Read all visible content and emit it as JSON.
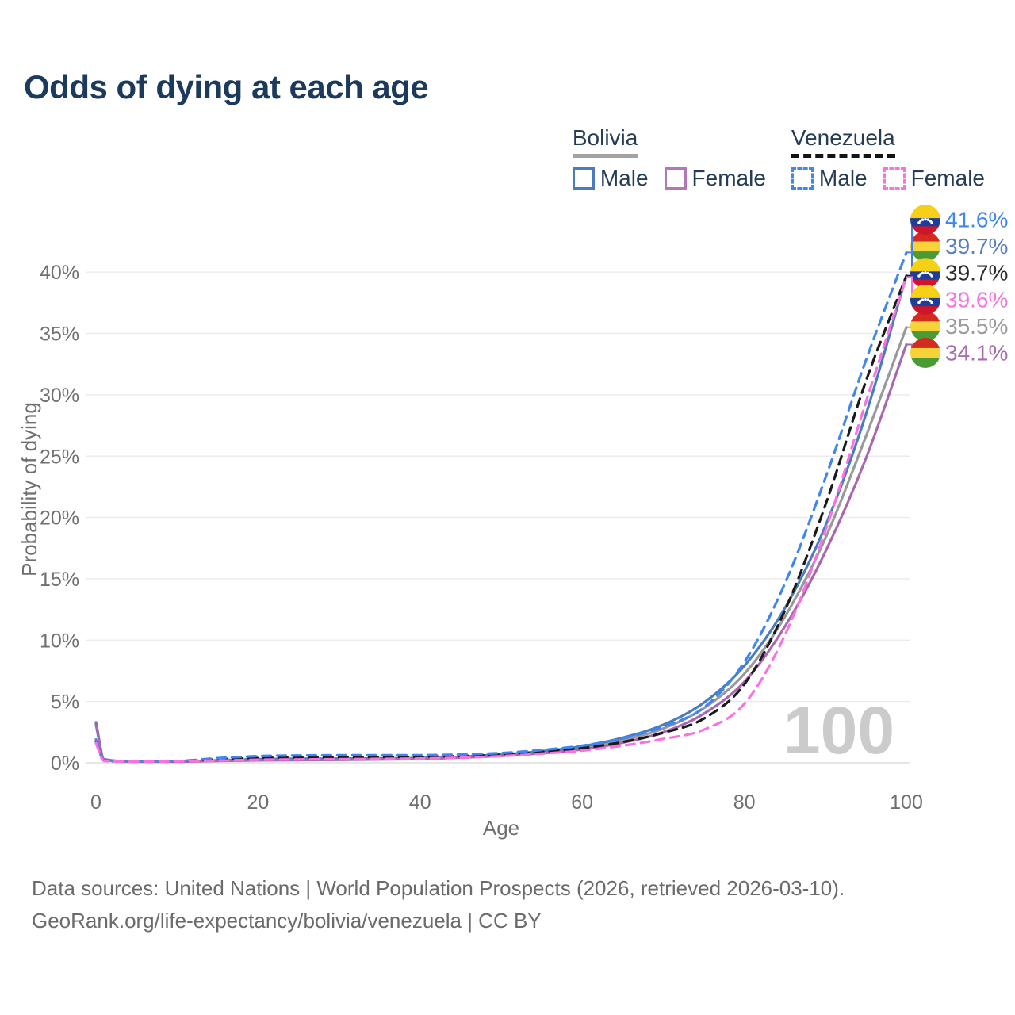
{
  "title": "Odds of dying at each age",
  "legend": {
    "groups": [
      {
        "name": "Bolivia",
        "line_style": "solid",
        "underline_color": "#a3a3a3",
        "items": [
          {
            "label": "Male",
            "color": "#4c7cc0"
          },
          {
            "label": "Female",
            "color": "#b277b6"
          }
        ]
      },
      {
        "name": "Venezuela",
        "line_style": "dashed",
        "underline_color": "#141414",
        "items": [
          {
            "label": "Male",
            "color": "#3f86f2"
          },
          {
            "label": "Female",
            "color": "#fb71e1"
          }
        ]
      }
    ]
  },
  "chart_data": {
    "type": "line",
    "title": "Odds of dying at each age",
    "xlabel": "Age",
    "ylabel": "Probability of dying",
    "xlim": [
      0,
      100
    ],
    "ylim": [
      0,
      43.5
    ],
    "grid": "horizontal-only",
    "legend_position": "top-right",
    "watermark": "100",
    "x_ticks": [
      {
        "v": 0,
        "label": "0"
      },
      {
        "v": 20,
        "label": "20"
      },
      {
        "v": 40,
        "label": "40"
      },
      {
        "v": 60,
        "label": "60"
      },
      {
        "v": 80,
        "label": "80"
      },
      {
        "v": 100,
        "label": "100"
      }
    ],
    "y_ticks": [
      {
        "v": 0,
        "label": "0%"
      },
      {
        "v": 5,
        "label": "5%"
      },
      {
        "v": 10,
        "label": "10%"
      },
      {
        "v": 15,
        "label": "15%"
      },
      {
        "v": 20,
        "label": "20%"
      },
      {
        "v": 25,
        "label": "25%"
      },
      {
        "v": 30,
        "label": "30%"
      },
      {
        "v": 35,
        "label": "35%"
      },
      {
        "v": 40,
        "label": "40%"
      }
    ],
    "ages": [
      0,
      1,
      5,
      10,
      15,
      20,
      25,
      30,
      35,
      40,
      45,
      50,
      55,
      60,
      65,
      70,
      75,
      80,
      85,
      90,
      95,
      100
    ],
    "series": [
      {
        "id": "bolivia-total",
        "name": "Bolivia",
        "color": "#999999",
        "dash": false,
        "end_value": 35.5,
        "end_label": "35.5%",
        "label_color": "#9b9b9b",
        "label_row": 4,
        "flag": "bolivia",
        "values": [
          3.2,
          0.28,
          0.11,
          0.11,
          0.18,
          0.25,
          0.28,
          0.29,
          0.32,
          0.36,
          0.46,
          0.62,
          0.86,
          1.22,
          1.85,
          2.8,
          4.45,
          7.25,
          11.9,
          18.3,
          26.6,
          35.5
        ]
      },
      {
        "id": "bolivia-male",
        "name": "Bolivia Male",
        "color": "#4c7cc0",
        "dash": false,
        "end_value": 39.7,
        "end_label": "39.7%",
        "label_color": "#587fc0",
        "label_row": 1,
        "flag": "bolivia",
        "values": [
          3.3,
          0.3,
          0.12,
          0.12,
          0.2,
          0.3,
          0.33,
          0.34,
          0.36,
          0.4,
          0.5,
          0.68,
          0.95,
          1.35,
          2.05,
          3.1,
          4.9,
          7.9,
          12.6,
          19.3,
          28.4,
          39.7
        ]
      },
      {
        "id": "bolivia-female",
        "name": "Bolivia Female",
        "color": "#a868b0",
        "dash": false,
        "end_value": 34.1,
        "end_label": "34.1%",
        "label_color": "#a76cae",
        "label_row": 5,
        "flag": "bolivia",
        "values": [
          3.1,
          0.25,
          0.1,
          0.1,
          0.15,
          0.2,
          0.22,
          0.24,
          0.27,
          0.32,
          0.42,
          0.57,
          0.78,
          1.1,
          1.65,
          2.5,
          4.0,
          6.6,
          11.1,
          17.2,
          24.8,
          34.1
        ]
      },
      {
        "id": "venezuela-total",
        "name": "Venezuela",
        "color": "#1a1a1a",
        "dash": true,
        "end_value": 39.7,
        "end_label": "39.7%",
        "label_color": "#2b2b2b",
        "label_row": 2,
        "flag": "venezuela",
        "values": [
          1.75,
          0.18,
          0.11,
          0.13,
          0.28,
          0.4,
          0.44,
          0.46,
          0.47,
          0.49,
          0.55,
          0.68,
          0.9,
          1.2,
          1.7,
          2.45,
          3.6,
          6.4,
          12.4,
          21.0,
          31.1,
          39.7
        ]
      },
      {
        "id": "venezuela-male",
        "name": "Venezuela Male",
        "color": "#3f86f2",
        "dash": true,
        "end_value": 41.6,
        "end_label": "41.6%",
        "label_color": "#3f86f2",
        "label_row": 0,
        "flag": "venezuela",
        "values": [
          1.9,
          0.2,
          0.12,
          0.15,
          0.38,
          0.55,
          0.6,
          0.62,
          0.62,
          0.63,
          0.68,
          0.8,
          1.05,
          1.4,
          2.0,
          2.95,
          4.5,
          8.2,
          14.6,
          23.2,
          32.8,
          41.6
        ]
      },
      {
        "id": "venezuela-female",
        "name": "Venezuela Female",
        "color": "#fb71e1",
        "dash": true,
        "end_value": 39.6,
        "end_label": "39.6%",
        "label_color": "#f673e2",
        "label_row": 3,
        "flag": "venezuela",
        "values": [
          1.6,
          0.15,
          0.09,
          0.11,
          0.18,
          0.25,
          0.28,
          0.3,
          0.32,
          0.35,
          0.42,
          0.55,
          0.75,
          1.0,
          1.4,
          1.95,
          2.7,
          4.8,
          10.4,
          18.9,
          29.4,
          39.6
        ]
      }
    ],
    "flags": {
      "bolivia": {
        "bands": [
          {
            "color": "#d52b1e",
            "frac": 0.34
          },
          {
            "color": "#f7d339",
            "frac": 0.33
          },
          {
            "color": "#4a9b35",
            "frac": 0.33
          }
        ],
        "stars": 0
      },
      "venezuela": {
        "bands": [
          {
            "color": "#f6cf17",
            "frac": 0.45
          },
          {
            "color": "#1f3d99",
            "frac": 0.27
          },
          {
            "color": "#cf142b",
            "frac": 0.28
          }
        ],
        "stars": 7,
        "star_color": "#ffffff"
      }
    }
  },
  "footer": {
    "line1": "Data sources: United Nations | World Population Prospects (2026, retrieved 2026-03-10).",
    "line2": "GeoRank.org/life-expectancy/bolivia/venezuela | CC BY"
  }
}
